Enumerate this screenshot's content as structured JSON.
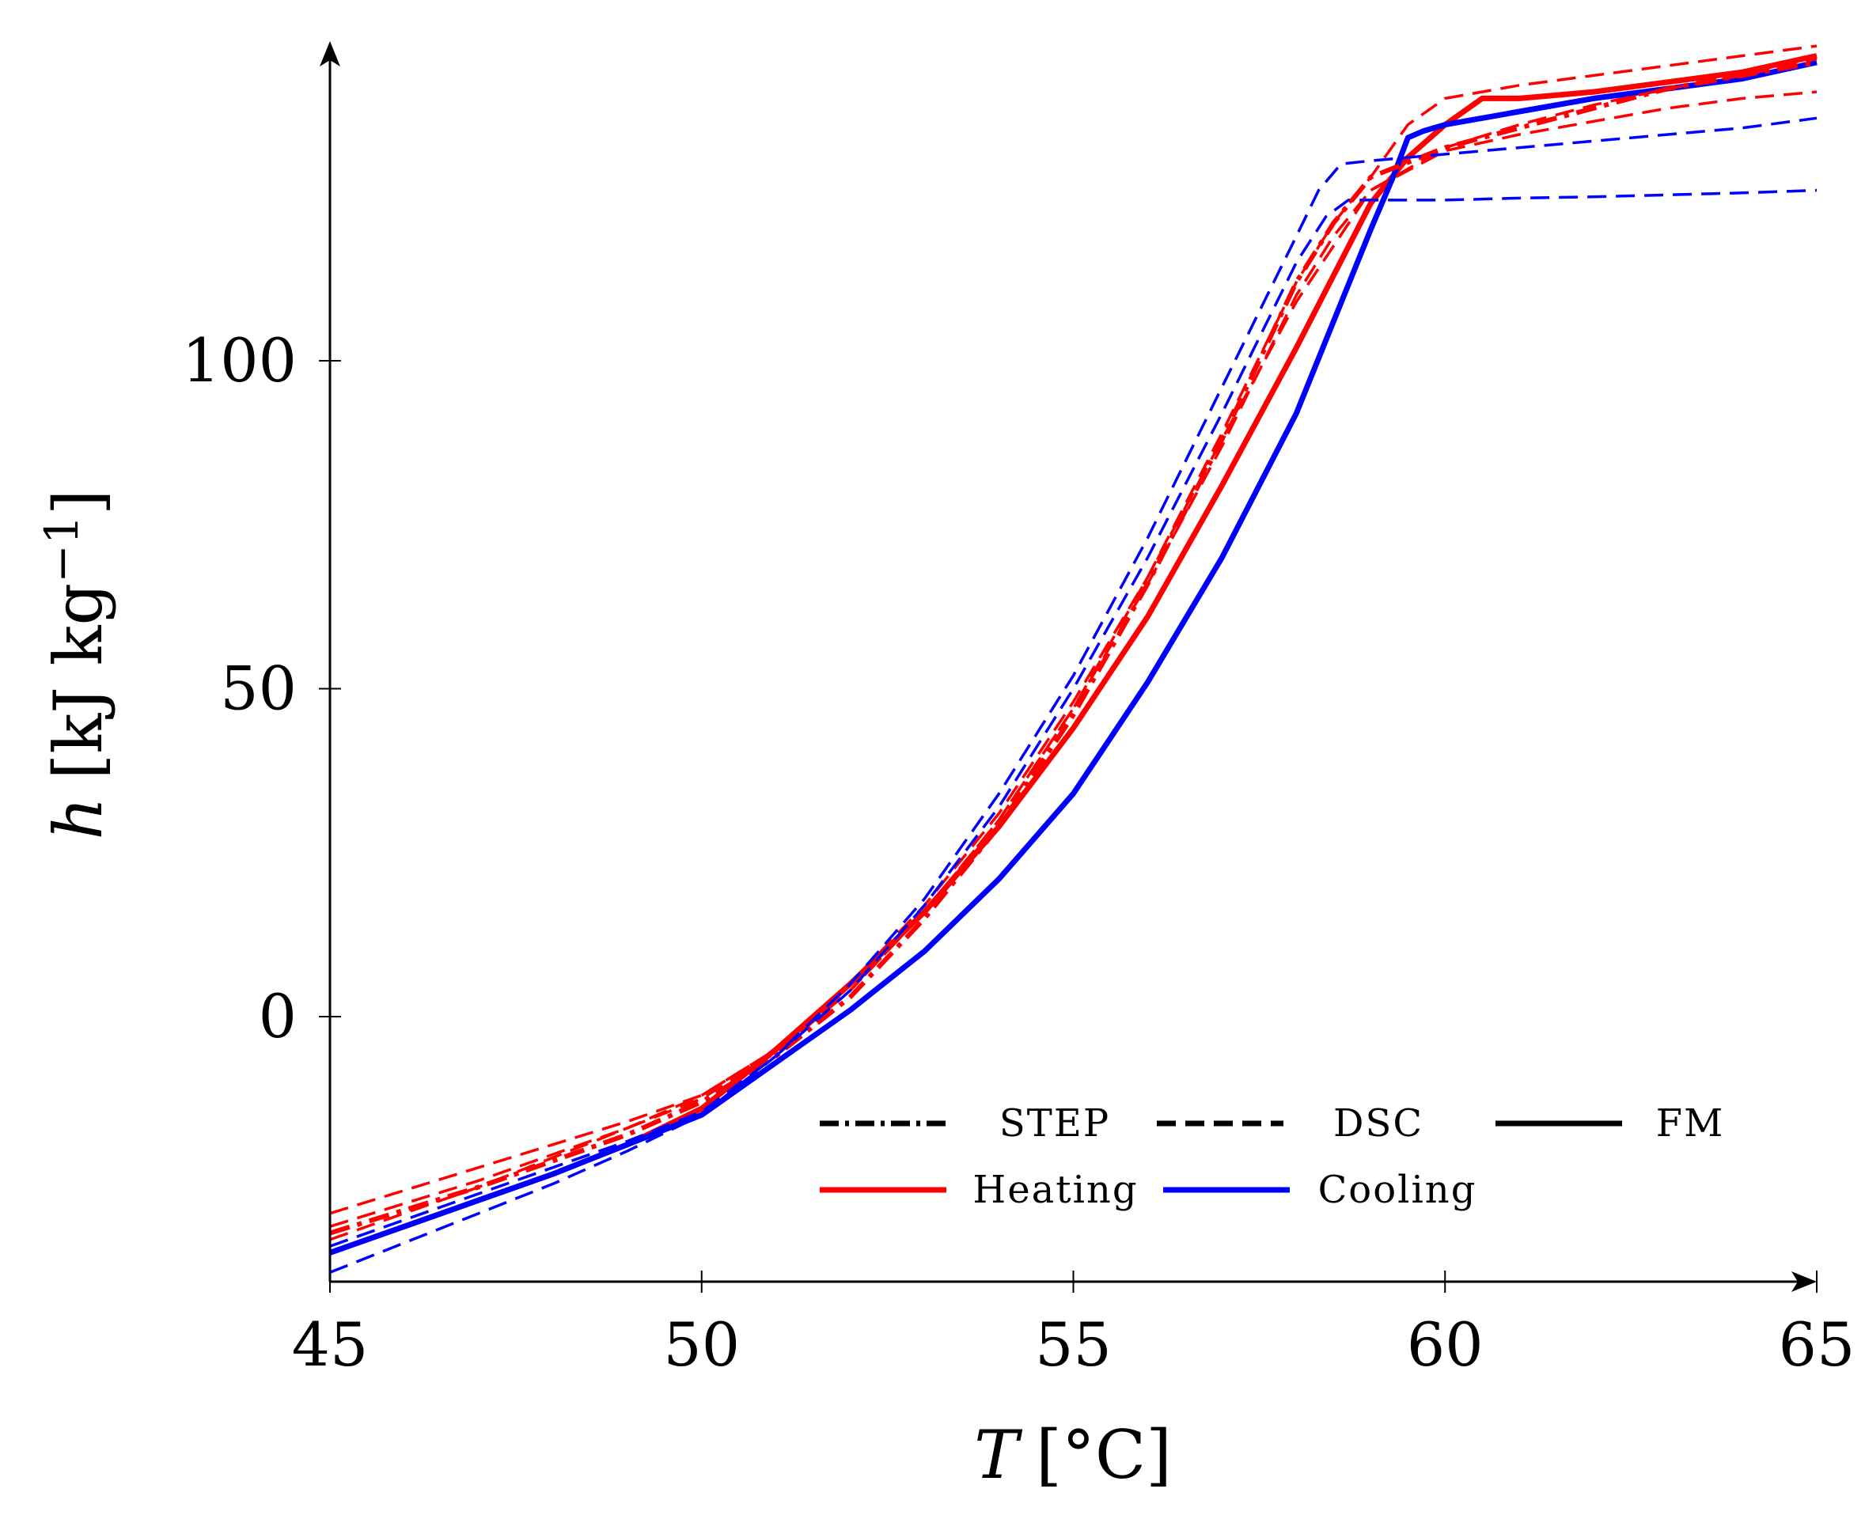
{
  "chart_data": {
    "type": "line",
    "title": "",
    "xlabel": {
      "symbol": "T",
      "unit": "[°C]"
    },
    "ylabel": {
      "symbol": "h",
      "unit": "[kJ kg",
      "exponent": "−1",
      "close": "]"
    },
    "xlim": [
      45,
      65
    ],
    "ylim": [
      -40,
      145
    ],
    "xticks": [
      45,
      50,
      55,
      60,
      65
    ],
    "yticks": [
      0,
      50,
      100
    ],
    "xtick_labels": [
      "45",
      "50",
      "55",
      "60",
      "65"
    ],
    "ytick_labels": [
      "0",
      "50",
      "100"
    ],
    "grid": false,
    "legend": {
      "placement": "bottom-right",
      "style_entries": [
        {
          "label": "STEP",
          "style": "dashdot"
        },
        {
          "label": "DSC",
          "style": "dashed"
        },
        {
          "label": "FM",
          "style": "solid"
        }
      ],
      "color_entries": [
        {
          "label": "Heating",
          "color": "#ff0000"
        },
        {
          "label": "Cooling",
          "color": "#0000ff"
        }
      ]
    },
    "series": [
      {
        "name": "FM Heating",
        "method": "FM",
        "mode": "Heating",
        "color": "#ff0000",
        "style": "solid",
        "x": [
          45,
          46,
          47,
          48,
          49,
          50,
          51,
          52,
          53,
          54,
          55,
          56,
          57,
          58,
          59,
          59.5,
          60,
          60.5,
          61,
          62,
          63,
          64,
          65
        ],
        "y": [
          -36,
          -32,
          -28,
          -24,
          -19.5,
          -14,
          -5,
          5,
          16,
          29,
          44,
          61,
          81,
          102,
          124,
          131,
          136,
          140,
          140,
          141,
          142.5,
          144,
          146.5
        ]
      },
      {
        "name": "FM Cooling",
        "method": "FM",
        "mode": "Cooling",
        "color": "#0000ff",
        "style": "solid",
        "x": [
          45,
          46,
          47,
          48,
          49,
          50,
          51,
          52,
          53,
          54,
          55,
          56,
          57,
          58,
          58.5,
          59,
          59.3,
          59.5,
          59.7,
          60,
          61,
          62,
          63,
          64,
          65
        ],
        "y": [
          -36,
          -32,
          -28,
          -24,
          -19.5,
          -15,
          -7,
          1,
          10,
          21,
          34,
          51,
          70,
          92,
          106,
          120,
          128,
          134,
          135,
          136,
          138,
          140,
          141.5,
          143,
          145.5
        ]
      },
      {
        "name": "STEP Heating",
        "method": "STEP",
        "mode": "Heating",
        "color": "#ff0000",
        "style": "dashdot",
        "x": [
          45,
          46,
          47,
          48,
          49,
          50,
          51,
          52,
          53,
          54,
          55,
          56,
          57,
          58,
          58.5,
          59,
          60,
          61,
          62,
          63,
          64,
          65
        ],
        "y": [
          -33,
          -29.5,
          -26,
          -22,
          -18,
          -13,
          -6,
          3,
          15,
          29,
          46,
          66,
          88,
          112,
          121,
          128,
          132.5,
          135.5,
          138.5,
          141.5,
          143.5,
          145.5
        ]
      },
      {
        "name": "DSC Heating 1",
        "method": "DSC",
        "mode": "Heating",
        "color": "#ff0000",
        "style": "dashed",
        "x": [
          45,
          46,
          47,
          48,
          49,
          50,
          51,
          52,
          53,
          54,
          55,
          56,
          57,
          58,
          58.5,
          59,
          59.5,
          60,
          61,
          62,
          63,
          64,
          65
        ],
        "y": [
          -30,
          -26.5,
          -23,
          -19.5,
          -16,
          -12,
          -5,
          4,
          16,
          30,
          47,
          67,
          89,
          112,
          121,
          128,
          136,
          140,
          142,
          143.5,
          145,
          146.5,
          148
        ]
      },
      {
        "name": "DSC Heating 2",
        "method": "DSC",
        "mode": "Heating",
        "color": "#ff0000",
        "style": "dashed",
        "x": [
          45,
          46,
          47,
          48,
          49,
          50,
          51,
          52,
          53,
          54,
          55,
          56,
          57,
          58,
          59,
          60,
          61,
          62,
          63,
          64,
          65
        ],
        "y": [
          -34,
          -30,
          -26,
          -21.5,
          -17,
          -12,
          -5,
          5,
          17,
          31,
          48,
          67,
          88,
          109,
          126,
          132,
          134.5,
          136.5,
          138.5,
          140,
          141
        ]
      },
      {
        "name": "DSC Heating 3",
        "method": "DSC",
        "mode": "Heating",
        "color": "#ff0000",
        "style": "dashed",
        "x": [
          45,
          46,
          47,
          48,
          49,
          50,
          51,
          52,
          53,
          54,
          55,
          56,
          57,
          58,
          58.5,
          59,
          60,
          61,
          62,
          63,
          64,
          65
        ],
        "y": [
          -32,
          -28.5,
          -25,
          -21,
          -17,
          -12.5,
          -5.5,
          4,
          16,
          30,
          47,
          66,
          87,
          110,
          119,
          126,
          132.5,
          136,
          139,
          141.5,
          143.5,
          146
        ]
      },
      {
        "name": "DSC Cooling 1",
        "method": "DSC",
        "mode": "Cooling",
        "color": "#0000ff",
        "style": "dashed",
        "x": [
          45,
          46,
          47,
          48,
          49,
          50,
          51,
          52,
          53,
          54,
          55,
          56,
          57,
          58,
          58.3,
          58.6,
          59,
          60,
          61,
          62,
          63,
          64,
          65
        ],
        "y": [
          -39,
          -34.5,
          -30,
          -25.5,
          -20.5,
          -15,
          -6,
          5,
          18,
          34,
          52,
          73,
          96,
          119,
          126,
          130,
          130.5,
          131.5,
          132.5,
          133.5,
          134.5,
          135.5,
          137
        ]
      },
      {
        "name": "DSC Cooling 2",
        "method": "DSC",
        "mode": "Cooling",
        "color": "#0000ff",
        "style": "dashed",
        "x": [
          45,
          46,
          47,
          48,
          49,
          50,
          51,
          52,
          53,
          54,
          55,
          56,
          57,
          58,
          58.4,
          58.7,
          59,
          60,
          61,
          62,
          63,
          64,
          65
        ],
        "y": [
          -35,
          -31,
          -27,
          -23,
          -19,
          -14.5,
          -6,
          4,
          17,
          32,
          50,
          70,
          92,
          115,
          122,
          124.5,
          124.5,
          124.5,
          124.8,
          125,
          125.3,
          125.6,
          126
        ]
      }
    ]
  }
}
